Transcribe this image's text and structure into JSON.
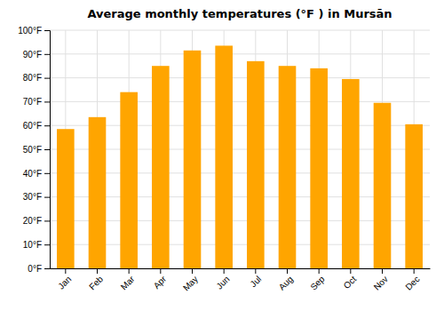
{
  "chart_data": {
    "type": "bar",
    "title": "Average monthly temperatures (°F ) in Mursān",
    "categories": [
      "Jan",
      "Feb",
      "Mar",
      "Apr",
      "May",
      "Jun",
      "Jul",
      "Aug",
      "Sep",
      "Oct",
      "Nov",
      "Dec"
    ],
    "values": [
      58.5,
      63.5,
      74,
      85,
      91.5,
      93.5,
      87,
      85,
      84,
      79.5,
      69.5,
      60.5
    ],
    "color": "#FFA500",
    "ylim": [
      0,
      100
    ],
    "yticks": [
      {
        "value": 0,
        "label": "0°F"
      },
      {
        "value": 10,
        "label": "10°F"
      },
      {
        "value": 20,
        "label": "20°F"
      },
      {
        "value": 30,
        "label": "30°F"
      },
      {
        "value": 40,
        "label": "40°F"
      },
      {
        "value": 50,
        "label": "50°F"
      },
      {
        "value": 60,
        "label": "60°F"
      },
      {
        "value": 70,
        "label": "70°F"
      },
      {
        "value": 80,
        "label": "80°F"
      },
      {
        "value": 90,
        "label": "90°F"
      },
      {
        "value": 100,
        "label": "100°F"
      }
    ],
    "grid": true
  }
}
